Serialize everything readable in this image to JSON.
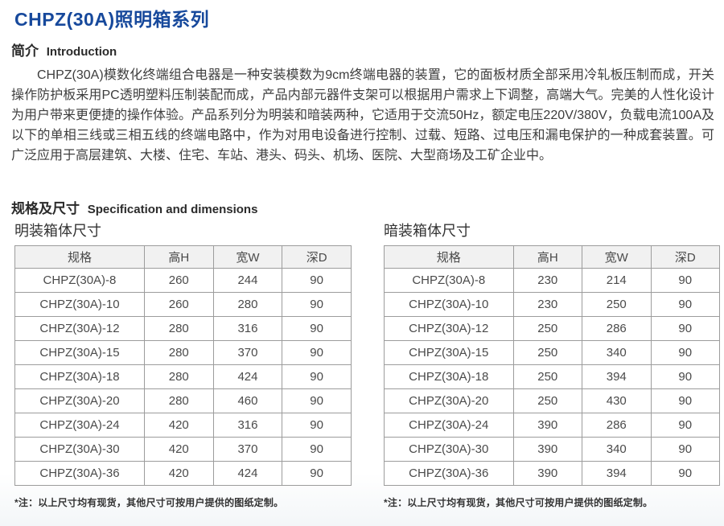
{
  "page": {
    "title": "CHPZ(30A)照明箱系列",
    "accent_color": "#17499c",
    "table_header_bg": "#f1f1f1",
    "table_border_color": "#9c9c9c"
  },
  "intro": {
    "heading_zh": "简介",
    "heading_en": "Introduction",
    "paragraph": "CHPZ(30A)模数化终端组合电器是一种安装模数为9cm终端电器的装置，它的面板材质全部采用冷轧板压制而成，开关操作防护板采用PC透明塑料压制装配而成，产品内部元器件支架可以根据用户需求上下调整，高端大气。完美的人性化设计为用户带来更便捷的操作体验。产品系列分为明装和暗装两种，它适用于交流50Hz，额定电压220V/380V，负载电流100A及以下的单相三线或三相五线的终端电路中，作为对用电设备进行控制、过载、短路、过电压和漏电保护的一种成套装置。可广泛应用于高层建筑、大楼、住宅、车站、港头、码头、机场、医院、大型商场及工矿企业中。"
  },
  "spec_section": {
    "heading_zh": "规格及尺寸",
    "heading_en": "Specification and dimensions"
  },
  "tables": [
    {
      "caption": "明装箱体尺寸",
      "headers": [
        "规格",
        "高H",
        "宽W",
        "深D"
      ],
      "rows": [
        [
          "CHPZ(30A)-8",
          "260",
          "244",
          "90"
        ],
        [
          "CHPZ(30A)-10",
          "260",
          "280",
          "90"
        ],
        [
          "CHPZ(30A)-12",
          "280",
          "316",
          "90"
        ],
        [
          "CHPZ(30A)-15",
          "280",
          "370",
          "90"
        ],
        [
          "CHPZ(30A)-18",
          "280",
          "424",
          "90"
        ],
        [
          "CHPZ(30A)-20",
          "280",
          "460",
          "90"
        ],
        [
          "CHPZ(30A)-24",
          "420",
          "316",
          "90"
        ],
        [
          "CHPZ(30A)-30",
          "420",
          "370",
          "90"
        ],
        [
          "CHPZ(30A)-36",
          "420",
          "424",
          "90"
        ]
      ],
      "footnote": "*注：以上尺寸均有现货，其他尺寸可按用户提供的图纸定制。"
    },
    {
      "caption": "暗装箱体尺寸",
      "headers": [
        "规格",
        "高H",
        "宽W",
        "深D"
      ],
      "rows": [
        [
          "CHPZ(30A)-8",
          "230",
          "214",
          "90"
        ],
        [
          "CHPZ(30A)-10",
          "230",
          "250",
          "90"
        ],
        [
          "CHPZ(30A)-12",
          "250",
          "286",
          "90"
        ],
        [
          "CHPZ(30A)-15",
          "250",
          "340",
          "90"
        ],
        [
          "CHPZ(30A)-18",
          "250",
          "394",
          "90"
        ],
        [
          "CHPZ(30A)-20",
          "250",
          "430",
          "90"
        ],
        [
          "CHPZ(30A)-24",
          "390",
          "286",
          "90"
        ],
        [
          "CHPZ(30A)-30",
          "390",
          "340",
          "90"
        ],
        [
          "CHPZ(30A)-36",
          "390",
          "394",
          "90"
        ]
      ],
      "footnote": "*注：以上尺寸均有现货，其他尺寸可按用户提供的图纸定制。"
    }
  ]
}
